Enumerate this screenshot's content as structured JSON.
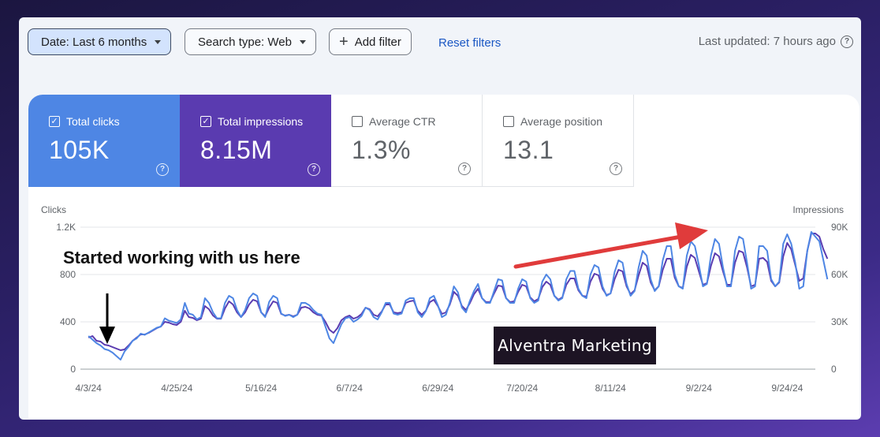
{
  "toolbar": {
    "date_filter": "Date: Last 6 months",
    "search_type_filter": "Search type: Web",
    "add_filter": "Add filter",
    "reset_filters": "Reset filters",
    "last_updated": "Last updated: 7 hours ago"
  },
  "metrics": [
    {
      "label": "Total clicks",
      "value": "105K",
      "checked": true,
      "color": "#4e86e4"
    },
    {
      "label": "Total impressions",
      "value": "8.15M",
      "checked": true,
      "color": "#5a3bb0"
    },
    {
      "label": "Average CTR",
      "value": "1.3%",
      "checked": false
    },
    {
      "label": "Average position",
      "value": "13.1",
      "checked": false
    }
  ],
  "annotation": {
    "text": "Started working with us here",
    "arrow_color": "#000000",
    "trend_arrow_color": "#e03b3b"
  },
  "watermark": "Alventra Marketing",
  "chart_data": {
    "type": "line",
    "left_axis_title": "Clicks",
    "right_axis_title": "Impressions",
    "left_ticks": [
      "0",
      "400",
      "800",
      "1.2K"
    ],
    "right_ticks": [
      "0",
      "30K",
      "60K",
      "90K"
    ],
    "ylim_left": [
      0,
      1200
    ],
    "ylim_right": [
      0,
      90000
    ],
    "x_tick_labels": [
      "4/3/24",
      "4/25/24",
      "5/16/24",
      "6/7/24",
      "6/29/24",
      "7/20/24",
      "8/11/24",
      "9/2/24",
      "9/24/24"
    ],
    "x_start": "4/1/24",
    "x_end": "10/1/24",
    "grid": true,
    "series": [
      {
        "name": "Clicks",
        "color": "#4e86e4",
        "axis": "left",
        "values": [
          280,
          250,
          220,
          200,
          170,
          160,
          140,
          110,
          80,
          150,
          190,
          240,
          260,
          300,
          290,
          310,
          330,
          350,
          360,
          430,
          410,
          400,
          390,
          420,
          560,
          470,
          460,
          420,
          440,
          600,
          560,
          480,
          430,
          430,
          560,
          620,
          600,
          500,
          440,
          500,
          600,
          640,
          620,
          480,
          440,
          570,
          620,
          600,
          470,
          450,
          460,
          440,
          460,
          560,
          560,
          540,
          500,
          470,
          460,
          360,
          260,
          220,
          300,
          380,
          430,
          440,
          400,
          420,
          450,
          520,
          500,
          440,
          420,
          480,
          560,
          560,
          470,
          460,
          470,
          580,
          600,
          600,
          480,
          440,
          490,
          600,
          620,
          540,
          440,
          460,
          560,
          700,
          650,
          520,
          480,
          580,
          660,
          720,
          600,
          560,
          560,
          660,
          760,
          750,
          600,
          560,
          560,
          680,
          760,
          740,
          600,
          560,
          580,
          740,
          800,
          760,
          620,
          580,
          600,
          760,
          830,
          830,
          680,
          620,
          600,
          800,
          880,
          860,
          700,
          620,
          640,
          820,
          920,
          900,
          720,
          620,
          660,
          860,
          1000,
          960,
          760,
          660,
          700,
          920,
          1040,
          1040,
          800,
          700,
          680,
          960,
          1080,
          1040,
          880,
          700,
          720,
          960,
          1100,
          1060,
          860,
          700,
          700,
          1000,
          1120,
          1100,
          900,
          680,
          700,
          1040,
          1040,
          1000,
          760,
          700,
          740,
          1060,
          1140,
          1060,
          900,
          680,
          700,
          1000,
          1160,
          1120,
          1080,
          920,
          760
        ]
      },
      {
        "name": "Impressions",
        "color": "#5a3bb0",
        "axis": "right",
        "values": [
          20000,
          21000,
          18000,
          17500,
          15500,
          15000,
          14000,
          13000,
          12000,
          12500,
          15000,
          18000,
          20000,
          22000,
          22000,
          23000,
          24500,
          26000,
          27000,
          30000,
          29500,
          28500,
          28000,
          30000,
          37000,
          33000,
          32500,
          31000,
          32000,
          40000,
          38000,
          34000,
          32000,
          32000,
          38500,
          43000,
          41000,
          36000,
          33000,
          36000,
          41000,
          44000,
          43000,
          36000,
          33500,
          39000,
          43000,
          42000,
          35000,
          34000,
          34500,
          33500,
          34500,
          39000,
          39500,
          38500,
          36000,
          34500,
          34000,
          30000,
          25000,
          23000,
          26000,
          31000,
          33000,
          34000,
          32000,
          33000,
          35000,
          39000,
          38000,
          34500,
          33500,
          36500,
          41000,
          41000,
          36000,
          35500,
          36000,
          42000,
          43000,
          43500,
          37000,
          34500,
          37000,
          42500,
          44000,
          40000,
          35000,
          36000,
          41000,
          49000,
          46500,
          40000,
          37500,
          42000,
          47500,
          51000,
          45000,
          42500,
          42500,
          48000,
          53000,
          52500,
          45000,
          42500,
          43000,
          49000,
          53500,
          52500,
          45500,
          43000,
          44500,
          52000,
          55500,
          53500,
          46500,
          44000,
          45500,
          53500,
          57500,
          57500,
          50000,
          46500,
          46000,
          55500,
          60500,
          59500,
          51000,
          47000,
          48000,
          57000,
          63000,
          62000,
          52500,
          47500,
          50000,
          59500,
          67500,
          65500,
          55000,
          50000,
          52500,
          63000,
          70000,
          70000,
          58000,
          52500,
          51500,
          65000,
          72500,
          70500,
          62000,
          53500,
          54500,
          65500,
          73500,
          71500,
          62000,
          53500,
          53500,
          67500,
          75000,
          74000,
          64500,
          52500,
          53500,
          70000,
          70500,
          68000,
          56000,
          52500,
          55000,
          71500,
          80000,
          76000,
          66000,
          56000,
          57500,
          75000,
          86000,
          86000,
          84000,
          76000,
          70000
        ]
      }
    ]
  }
}
